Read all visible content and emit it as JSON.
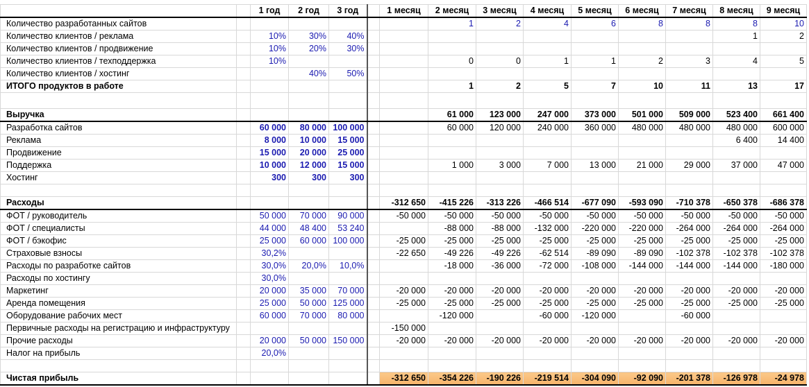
{
  "header": {
    "years": [
      "1 год",
      "2 год",
      "3 год"
    ],
    "months": [
      "1 месяц",
      "2 месяц",
      "3 месяц",
      "4 месяц",
      "5 месяц",
      "6 месяц",
      "7 месяц",
      "8 месяц",
      "9 месяц"
    ]
  },
  "rows": [
    {
      "label": "Количество разработанных сайтов",
      "kind": "normal",
      "year_style": "normal",
      "month_style": "blue",
      "years": [
        "",
        "",
        ""
      ],
      "months": [
        "",
        "1",
        "2",
        "4",
        "6",
        "8",
        "8",
        "8",
        "10"
      ]
    },
    {
      "label": "Количество клиентов / реклама",
      "kind": "normal",
      "year_style": "normal",
      "years": [
        "10%",
        "30%",
        "40%"
      ],
      "months": [
        "",
        "",
        "",
        "",
        "",
        "",
        "",
        "1",
        "2"
      ]
    },
    {
      "label": "Количество клиентов / продвижение",
      "kind": "normal",
      "year_style": "normal",
      "years": [
        "10%",
        "20%",
        "30%"
      ],
      "months": [
        "",
        "",
        "",
        "",
        "",
        "",
        "",
        "",
        ""
      ]
    },
    {
      "label": "Количество клиентов / техподдержка",
      "kind": "normal",
      "year_style": "normal",
      "years": [
        "10%",
        "",
        ""
      ],
      "months": [
        "",
        "0",
        "0",
        "1",
        "1",
        "2",
        "3",
        "4",
        "5"
      ]
    },
    {
      "label": "Количество клиентов / хостинг",
      "kind": "normal",
      "year_style": "normal",
      "years": [
        "",
        "40%",
        "50%"
      ],
      "months": [
        "",
        "",
        "",
        "",
        "",
        "",
        "",
        "",
        ""
      ]
    },
    {
      "label": "ИТОГО продуктов в работе",
      "kind": "total",
      "year_style": "normal",
      "years": [
        "",
        "",
        ""
      ],
      "months": [
        "",
        "1",
        "2",
        "5",
        "7",
        "10",
        "11",
        "13",
        "17"
      ]
    },
    {
      "label": "",
      "kind": "gap",
      "years": [
        "",
        "",
        ""
      ],
      "months": [
        "",
        "",
        "",
        "",
        "",
        "",
        "",
        "",
        ""
      ]
    },
    {
      "label": "Выручка",
      "kind": "section",
      "years": [
        "",
        "",
        ""
      ],
      "months": [
        "",
        "61 000",
        "123 000",
        "247 000",
        "373 000",
        "501 000",
        "509 000",
        "523 400",
        "661 400"
      ]
    },
    {
      "label": "Разработка сайтов",
      "kind": "normal",
      "year_style": "bold",
      "years": [
        "60 000",
        "80 000",
        "100 000"
      ],
      "months": [
        "",
        "60 000",
        "120 000",
        "240 000",
        "360 000",
        "480 000",
        "480 000",
        "480 000",
        "600 000"
      ]
    },
    {
      "label": "Реклама",
      "kind": "normal",
      "year_style": "bold",
      "years": [
        "8 000",
        "10 000",
        "15 000"
      ],
      "months": [
        "",
        "",
        "",
        "",
        "",
        "",
        "",
        "6 400",
        "14 400"
      ]
    },
    {
      "label": "Продвижение",
      "kind": "normal",
      "year_style": "bold",
      "years": [
        "15 000",
        "20 000",
        "25 000"
      ],
      "months": [
        "",
        "",
        "",
        "",
        "",
        "",
        "",
        "",
        ""
      ]
    },
    {
      "label": "Поддержка",
      "kind": "normal",
      "year_style": "bold",
      "years": [
        "10 000",
        "12 000",
        "15 000"
      ],
      "months": [
        "",
        "1 000",
        "3 000",
        "7 000",
        "13 000",
        "21 000",
        "29 000",
        "37 000",
        "47 000"
      ]
    },
    {
      "label": "Хостинг",
      "kind": "normal",
      "year_style": "bold",
      "years": [
        "300",
        "300",
        "300"
      ],
      "months": [
        "",
        "",
        "",
        "",
        "",
        "",
        "",
        "",
        ""
      ]
    },
    {
      "label": "",
      "kind": "empty",
      "years": [
        "",
        "",
        ""
      ],
      "months": [
        "",
        "",
        "",
        "",
        "",
        "",
        "",
        "",
        ""
      ]
    },
    {
      "label": "Расходы",
      "kind": "section",
      "years": [
        "",
        "",
        ""
      ],
      "months": [
        "-312 650",
        "-415 226",
        "-313 226",
        "-466 514",
        "-677 090",
        "-593 090",
        "-710 378",
        "-650 378",
        "-686 378"
      ]
    },
    {
      "label": "ФОТ / руководитель",
      "kind": "normal",
      "year_style": "normal",
      "years": [
        "50 000",
        "70 000",
        "90 000"
      ],
      "months": [
        "-50 000",
        "-50 000",
        "-50 000",
        "-50 000",
        "-50 000",
        "-50 000",
        "-50 000",
        "-50 000",
        "-50 000"
      ]
    },
    {
      "label": "ФОТ / специалисты",
      "kind": "normal",
      "year_style": "normal",
      "years": [
        "44 000",
        "48 400",
        "53 240"
      ],
      "months": [
        "",
        "-88 000",
        "-88 000",
        "-132 000",
        "-220 000",
        "-220 000",
        "-264 000",
        "-264 000",
        "-264 000"
      ]
    },
    {
      "label": "ФОТ / бэкофис",
      "kind": "normal",
      "year_style": "normal",
      "years": [
        "25 000",
        "60 000",
        "100 000"
      ],
      "months": [
        "-25 000",
        "-25 000",
        "-25 000",
        "-25 000",
        "-25 000",
        "-25 000",
        "-25 000",
        "-25 000",
        "-25 000"
      ]
    },
    {
      "label": "Страховые взносы",
      "kind": "normal",
      "year_style": "normal",
      "years": [
        "30,2%",
        "",
        ""
      ],
      "months": [
        "-22 650",
        "-49 226",
        "-49 226",
        "-62 514",
        "-89 090",
        "-89 090",
        "-102 378",
        "-102 378",
        "-102 378"
      ]
    },
    {
      "label": "Расходы по разработке сайтов",
      "kind": "normal",
      "year_style": "normal",
      "years": [
        "30,0%",
        "20,0%",
        "10,0%"
      ],
      "months": [
        "",
        "-18 000",
        "-36 000",
        "-72 000",
        "-108 000",
        "-144 000",
        "-144 000",
        "-144 000",
        "-180 000"
      ]
    },
    {
      "label": "Расходы по хостингу",
      "kind": "normal",
      "year_style": "normal",
      "years": [
        "30,0%",
        "",
        ""
      ],
      "months": [
        "",
        "",
        "",
        "",
        "",
        "",
        "",
        "",
        ""
      ]
    },
    {
      "label": "Маркетинг",
      "kind": "normal",
      "year_style": "normal",
      "years": [
        "20 000",
        "35 000",
        "70 000"
      ],
      "months": [
        "-20 000",
        "-20 000",
        "-20 000",
        "-20 000",
        "-20 000",
        "-20 000",
        "-20 000",
        "-20 000",
        "-20 000"
      ]
    },
    {
      "label": "Аренда помещения",
      "kind": "normal",
      "year_style": "normal",
      "years": [
        "25 000",
        "50 000",
        "125 000"
      ],
      "months": [
        "-25 000",
        "-25 000",
        "-25 000",
        "-25 000",
        "-25 000",
        "-25 000",
        "-25 000",
        "-25 000",
        "-25 000"
      ]
    },
    {
      "label": "Оборудование рабочих мест",
      "kind": "normal",
      "year_style": "normal",
      "years": [
        "60 000",
        "70 000",
        "80 000"
      ],
      "months": [
        "",
        "-120 000",
        "",
        "-60 000",
        "-120 000",
        "",
        "-60 000",
        "",
        ""
      ]
    },
    {
      "label": "Первичные расходы на регистрацию и инфраструктуру",
      "kind": "normal",
      "year_style": "normal",
      "years": [
        "",
        "",
        ""
      ],
      "months": [
        "-150 000",
        "",
        "",
        "",
        "",
        "",
        "",
        "",
        ""
      ]
    },
    {
      "label": "Прочие расходы",
      "kind": "normal",
      "year_style": "normal",
      "years": [
        "20 000",
        "50 000",
        "150 000"
      ],
      "months": [
        "-20 000",
        "-20 000",
        "-20 000",
        "-20 000",
        "-20 000",
        "-20 000",
        "-20 000",
        "-20 000",
        "-20 000"
      ]
    },
    {
      "label": "Налог на прибыль",
      "kind": "normal",
      "year_style": "normal",
      "years": [
        "20,0%",
        "",
        ""
      ],
      "months": [
        "",
        "",
        "",
        "",
        "",
        "",
        "",
        "",
        ""
      ]
    },
    {
      "label": "",
      "kind": "empty",
      "years": [
        "",
        "",
        ""
      ],
      "months": [
        "",
        "",
        "",
        "",
        "",
        "",
        "",
        "",
        ""
      ]
    },
    {
      "label": "Чистая прибыль",
      "kind": "profit",
      "years": [
        "",
        "",
        ""
      ],
      "months": [
        "-312 650",
        "-354 226",
        "-190 226",
        "-219 514",
        "-304 090",
        "-92 090",
        "-201 378",
        "-126 978",
        "-24 978"
      ]
    }
  ],
  "colors": {
    "input_blue": "#1a1ab0",
    "profit_fill": "#f6b36a"
  }
}
